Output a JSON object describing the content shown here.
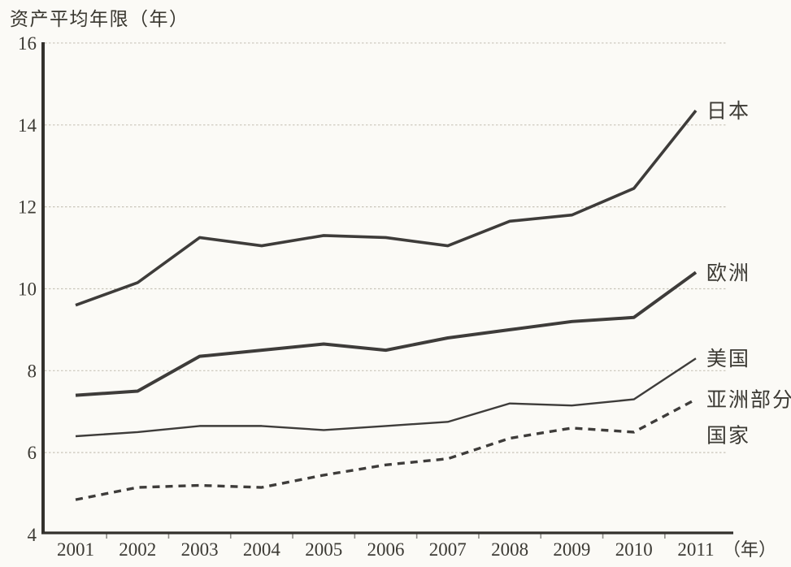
{
  "chart_data": {
    "type": "line",
    "title": "资产平均年限（年）",
    "x_unit_label": "（年）",
    "categories": [
      2001,
      2002,
      2003,
      2004,
      2005,
      2006,
      2007,
      2008,
      2009,
      2010,
      2011
    ],
    "series": [
      {
        "key": "japan",
        "name": "日本",
        "label_lines": [
          "日本"
        ],
        "style": "solid",
        "line_width": "thick",
        "values": [
          9.6,
          10.15,
          11.25,
          11.05,
          11.3,
          11.25,
          11.05,
          11.65,
          11.8,
          12.45,
          14.35
        ]
      },
      {
        "key": "europe",
        "name": "欧洲",
        "label_lines": [
          "欧洲"
        ],
        "style": "solid",
        "line_width": "thick",
        "values": [
          7.4,
          7.5,
          8.35,
          8.5,
          8.65,
          8.5,
          8.8,
          9.0,
          9.2,
          9.3,
          10.4
        ]
      },
      {
        "key": "usa",
        "name": "美国",
        "label_lines": [
          "美国"
        ],
        "style": "solid",
        "line_width": "thin",
        "values": [
          6.4,
          6.5,
          6.65,
          6.65,
          6.55,
          6.65,
          6.75,
          7.2,
          7.15,
          7.3,
          8.3
        ]
      },
      {
        "key": "asia",
        "name": "亚洲部分国家",
        "label_lines": [
          "亚洲部分",
          "国家"
        ],
        "style": "dashed",
        "line_width": "thick",
        "values": [
          4.85,
          5.15,
          5.2,
          5.15,
          5.45,
          5.7,
          5.85,
          6.35,
          6.6,
          6.5,
          7.3
        ]
      }
    ],
    "ylim": [
      4,
      16
    ],
    "yticks": [
      4,
      6,
      8,
      10,
      12,
      14,
      16
    ],
    "grid": true,
    "legend_position": "line-end-labels"
  },
  "colors": {
    "line": "#3e3c3a",
    "grid": "#c3bfb3",
    "axis": "#33312d",
    "text": "#3c3a34",
    "background": "#fbfaf6"
  }
}
